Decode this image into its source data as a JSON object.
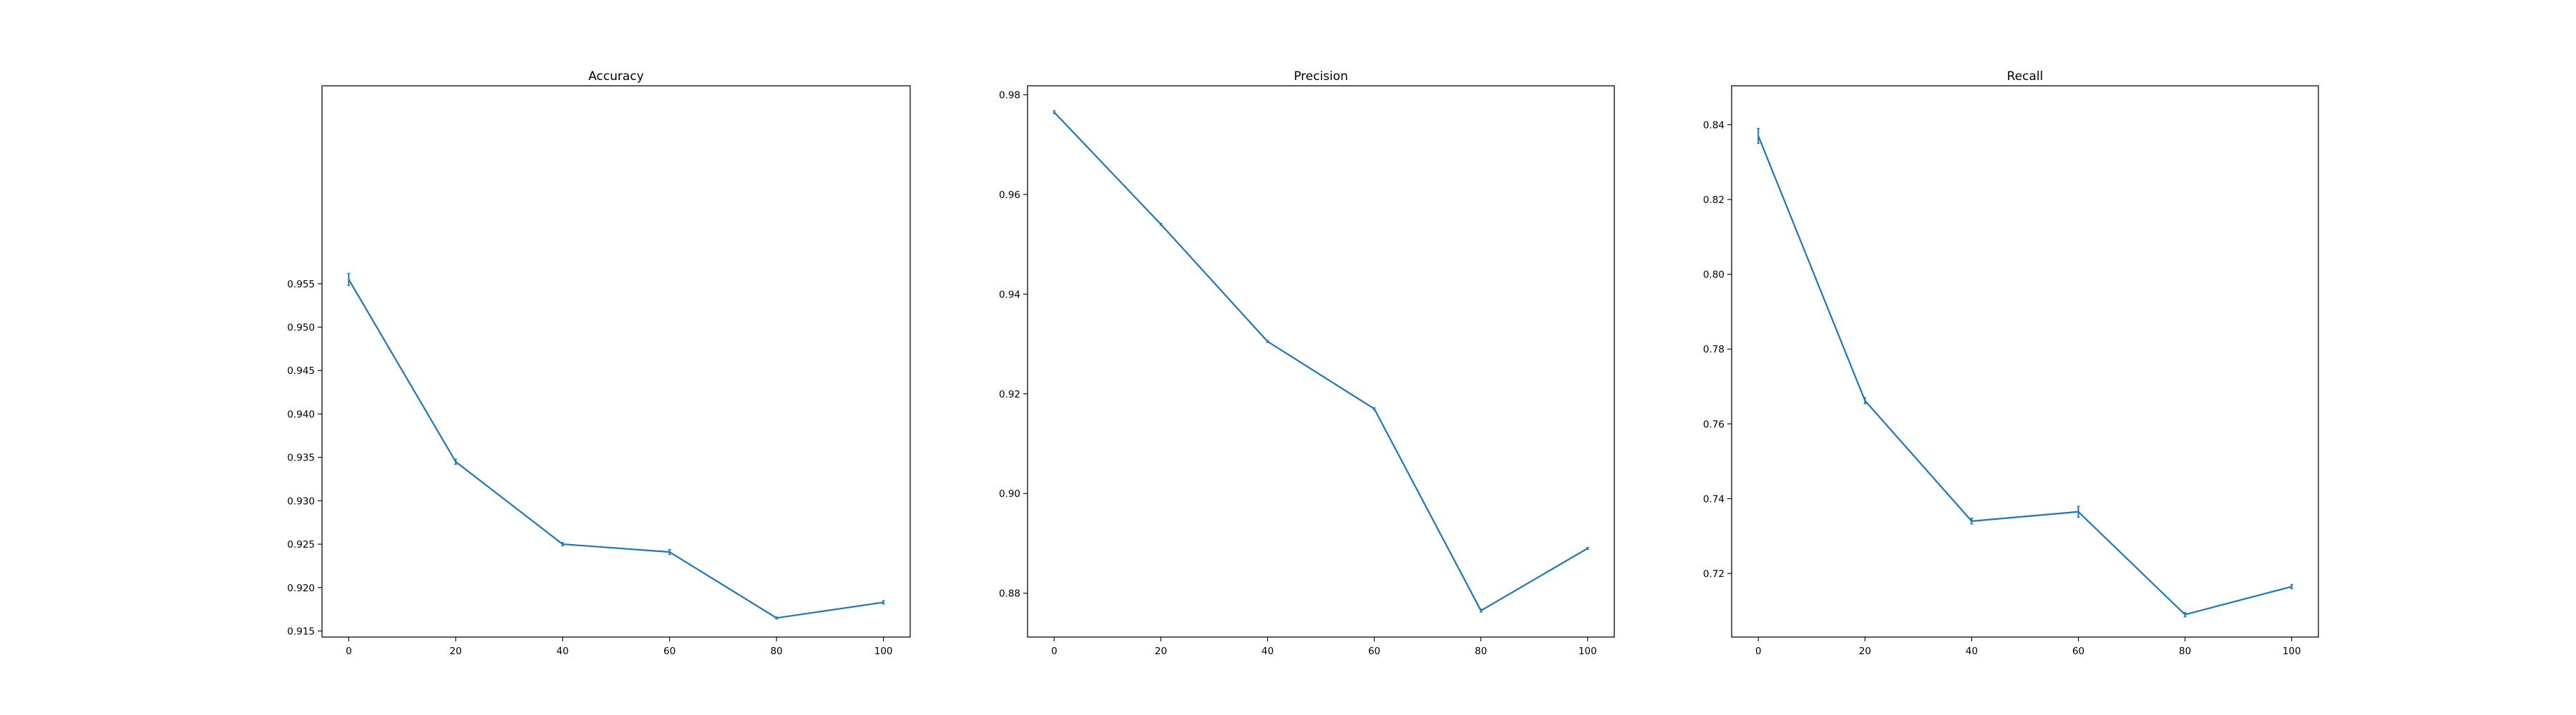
{
  "chart_data": [
    {
      "type": "line",
      "title": "Accuracy",
      "xlabel": "",
      "ylabel": "",
      "x": [
        0,
        20,
        40,
        60,
        80,
        100
      ],
      "series": [
        {
          "values": [
            0.9555,
            0.9345,
            0.925,
            0.9241,
            0.9165,
            0.9183
          ]
        }
      ],
      "error_bars": [
        0.0007,
        0.0003,
        0.0002,
        0.0003,
        0.0001,
        0.0002
      ],
      "xlim": [
        -5,
        105
      ],
      "ylim": [
        0.9143,
        0.9778
      ],
      "xticks": [
        0,
        20,
        40,
        60,
        80,
        100
      ],
      "yticks": [
        0.915,
        0.92,
        0.925,
        0.93,
        0.935,
        0.94,
        0.945,
        0.95,
        0.955
      ],
      "ytick_labels": [
        "0.915",
        "0.920",
        "0.925",
        "0.930",
        "0.935",
        "0.940",
        "0.945",
        "0.950",
        "0.955"
      ],
      "grid": false,
      "color": "#1f77b4"
    },
    {
      "type": "line",
      "title": "Precision",
      "xlabel": "",
      "ylabel": "",
      "x": [
        0,
        20,
        40,
        60,
        80,
        100
      ],
      "series": [
        {
          "values": [
            0.9765,
            0.954,
            0.9305,
            0.917,
            0.8765,
            0.889
          ]
        }
      ],
      "error_bars": [
        0.0003,
        0.0002,
        0.0002,
        0.0002,
        0.0003,
        0.0002
      ],
      "xlim": [
        -5,
        105
      ],
      "ylim": [
        0.8712,
        0.9818
      ],
      "xticks": [
        0,
        20,
        40,
        60,
        80,
        100
      ],
      "yticks": [
        0.88,
        0.9,
        0.92,
        0.94,
        0.96,
        0.98
      ],
      "ytick_labels": [
        "0.88",
        "0.90",
        "0.92",
        "0.94",
        "0.96",
        "0.98"
      ],
      "grid": false,
      "color": "#1f77b4"
    },
    {
      "type": "line",
      "title": "Recall",
      "xlabel": "",
      "ylabel": "",
      "x": [
        0,
        20,
        40,
        60,
        80,
        100
      ],
      "series": [
        {
          "values": [
            0.837,
            0.7662,
            0.734,
            0.7365,
            0.709,
            0.7165
          ]
        }
      ],
      "error_bars": [
        0.002,
        0.0008,
        0.0008,
        0.0015,
        0.0006,
        0.0006
      ],
      "xlim": [
        -5,
        105
      ],
      "ylim": [
        0.703,
        0.8504
      ],
      "xticks": [
        0,
        20,
        40,
        60,
        80,
        100
      ],
      "yticks": [
        0.72,
        0.74,
        0.76,
        0.78,
        0.8,
        0.82,
        0.84
      ],
      "ytick_labels": [
        "0.72",
        "0.74",
        "0.76",
        "0.78",
        "0.80",
        "0.82",
        "0.84"
      ],
      "grid": false,
      "color": "#1f77b4"
    }
  ]
}
